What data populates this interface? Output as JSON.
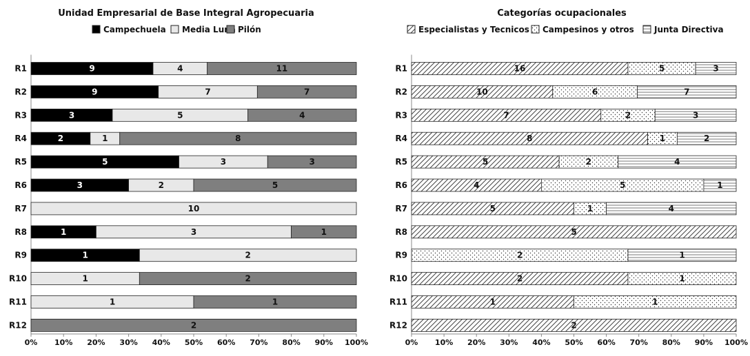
{
  "chart_data": [
    {
      "type": "bar",
      "stacked": "percent",
      "orientation": "horizontal",
      "title": "Unidad Empresarial de Base Integral Agropecuaria",
      "categories": [
        "R1",
        "R2",
        "R3",
        "R4",
        "R5",
        "R6",
        "R7",
        "R8",
        "R9",
        "R10",
        "R11",
        "R12"
      ],
      "series": [
        {
          "name": "Campechuela",
          "color": "#000000",
          "values": [
            9,
            9,
            3,
            2,
            5,
            3,
            0,
            1,
            1,
            0,
            0,
            0
          ]
        },
        {
          "name": "Media Luna",
          "color": "#e8e8e8",
          "values": [
            4,
            7,
            5,
            1,
            3,
            2,
            10,
            3,
            2,
            1,
            1,
            0
          ]
        },
        {
          "name": "Pilón",
          "color": "#7f7f7f",
          "values": [
            11,
            7,
            4,
            8,
            3,
            5,
            0,
            1,
            0,
            2,
            1,
            2
          ]
        }
      ],
      "xticks": [
        "0%",
        "10%",
        "20%",
        "30%",
        "40%",
        "50%",
        "60%",
        "70%",
        "80%",
        "90%",
        "100%"
      ],
      "xlim": [
        0,
        100
      ],
      "legend": "top"
    },
    {
      "type": "bar",
      "stacked": "percent",
      "orientation": "horizontal",
      "title": "Categorías  ocupacionales",
      "categories": [
        "R1",
        "R2",
        "R3",
        "R4",
        "R5",
        "R6",
        "R7",
        "R8",
        "R9",
        "R10",
        "R11",
        "R12"
      ],
      "series": [
        {
          "name": "Especialistas y Tecnicos",
          "pattern": "diagonal-hatch",
          "values": [
            16,
            10,
            7,
            8,
            5,
            4,
            5,
            5,
            0,
            2,
            1,
            2
          ]
        },
        {
          "name": "Campesinos y otros",
          "pattern": "dots",
          "values": [
            5,
            6,
            2,
            1,
            2,
            5,
            1,
            0,
            2,
            1,
            1,
            0
          ]
        },
        {
          "name": "Junta Directiva",
          "pattern": "horizontal-lines",
          "values": [
            3,
            7,
            3,
            2,
            4,
            1,
            4,
            0,
            1,
            0,
            0,
            0
          ]
        }
      ],
      "xticks": [
        "0%",
        "10%",
        "20%",
        "30%",
        "40%",
        "50%",
        "60%",
        "70%",
        "80%",
        "90%",
        "100%"
      ],
      "xlim": [
        0,
        100
      ],
      "legend": "top"
    }
  ]
}
